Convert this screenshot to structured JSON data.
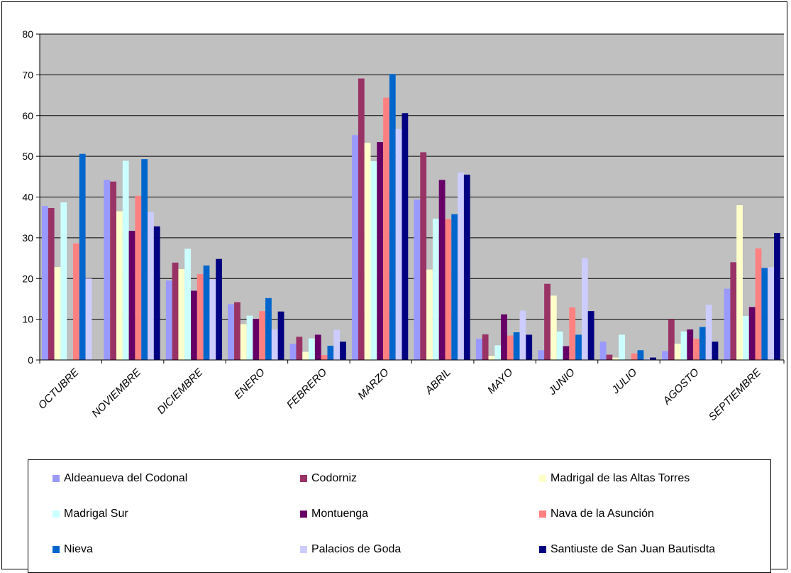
{
  "chart_data": {
    "type": "bar",
    "title": "",
    "xlabel": "",
    "ylabel": "",
    "ylim": [
      0,
      80
    ],
    "yticks": [
      "0",
      "10",
      "20",
      "30",
      "40",
      "50",
      "60",
      "70",
      "80"
    ],
    "grid": true,
    "legend_position": "bottom",
    "plot_background": "#C0C0C0",
    "categories": [
      "OCTUBRE",
      "NOVIEMBRE",
      "DICIEMBRE",
      "ENERO",
      "FEBRERO",
      "MARZO",
      "ABRIL",
      "MAYO",
      "JUNIO",
      "JULIO",
      "AGOSTO",
      "SEPTIEMBRE"
    ],
    "series": [
      {
        "name": "Aldeanueva del Codonal",
        "color": "#9999FF",
        "values": [
          37.8,
          44.2,
          19.5,
          13.7,
          4.0,
          55.2,
          39.4,
          5.2,
          2.4,
          4.5,
          2.2,
          17.5
        ]
      },
      {
        "name": "Codorniz",
        "color": "#993366",
        "values": [
          37.3,
          43.8,
          23.9,
          14.2,
          5.7,
          69.1,
          51.0,
          6.3,
          18.7,
          1.3,
          10.0,
          24.0
        ]
      },
      {
        "name": "Madrigal de las Altas Torres",
        "color": "#FFFFCC",
        "values": [
          22.8,
          36.5,
          22.3,
          8.8,
          2.0,
          53.3,
          22.2,
          1.0,
          15.8,
          0.6,
          4.0,
          38.0
        ]
      },
      {
        "name": "Madrigal Sur",
        "color": "#CCFFFF",
        "values": [
          38.7,
          48.9,
          27.3,
          10.9,
          5.3,
          48.8,
          34.7,
          3.6,
          7.0,
          6.2,
          7.0,
          10.8
        ]
      },
      {
        "name": "Montuenga",
        "color": "#660066",
        "values": [
          0,
          31.7,
          17.0,
          10.1,
          6.2,
          53.5,
          44.2,
          11.2,
          3.4,
          0,
          7.5,
          13.0
        ]
      },
      {
        "name": "Nava de la Asunción",
        "color": "#FF8080",
        "values": [
          28.6,
          40.3,
          21.1,
          12.0,
          1.2,
          64.4,
          34.6,
          6.0,
          12.9,
          1.6,
          5.2,
          27.4
        ]
      },
      {
        "name": "Nieva",
        "color": "#0066CC",
        "values": [
          50.6,
          49.3,
          23.2,
          15.2,
          3.5,
          70.2,
          35.8,
          6.8,
          6.2,
          2.4,
          8.1,
          22.6
        ]
      },
      {
        "name": "Palacios de Goda",
        "color": "#CCCCFF",
        "values": [
          20.0,
          36.3,
          19.8,
          7.5,
          7.4,
          56.7,
          46.0,
          12.1,
          25.0,
          0.3,
          13.6,
          22.8
        ]
      },
      {
        "name": "Santiuste de San Juan Bautisdta",
        "color": "#000080",
        "values": [
          0,
          32.8,
          24.8,
          11.9,
          4.5,
          60.6,
          45.5,
          6.2,
          12.0,
          0.6,
          4.5,
          31.2
        ]
      }
    ]
  }
}
